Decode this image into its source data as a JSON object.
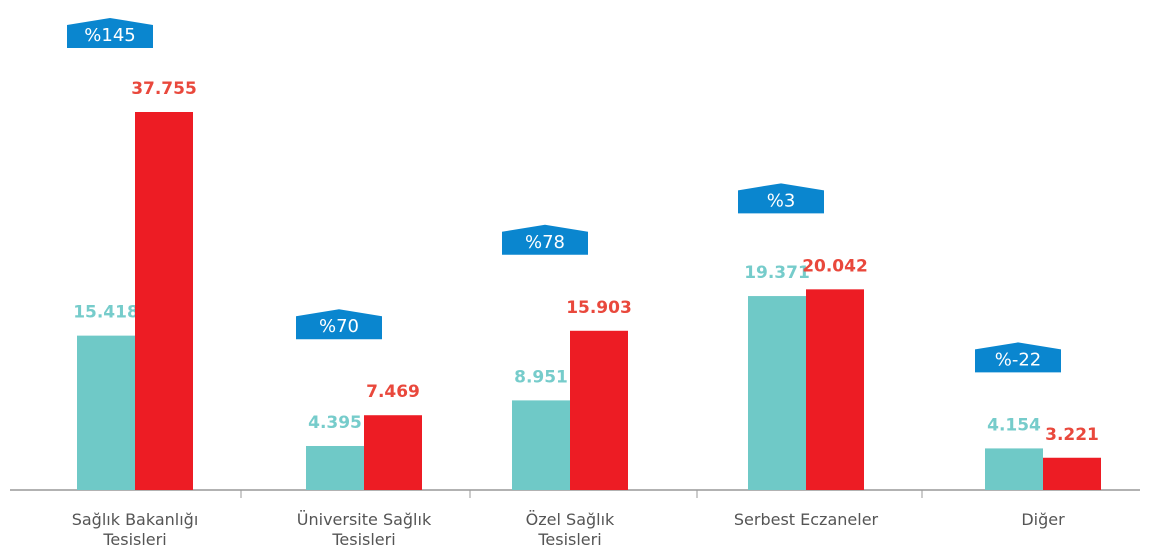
{
  "chart_data": {
    "type": "bar",
    "categories": [
      "Sağlık Bakanlığı\nTesisleri",
      "Üniversite Sağlık\nTesisleri",
      "Özel Sağlık\nTesisleri",
      "Serbest Eczaneler",
      "Diğer"
    ],
    "series": [
      {
        "color": "#6fc9c7",
        "label_color": "#76cccb",
        "values": [
          15418,
          4395,
          8951,
          19371,
          4154
        ],
        "value_labels": [
          "15.418",
          "4.395",
          "8.951",
          "19.371",
          "4.154"
        ]
      },
      {
        "color": "#ed1c24",
        "label_color": "#e9483c",
        "values": [
          37755,
          7469,
          15903,
          20042,
          3221
        ],
        "value_labels": [
          "37.755",
          "7.469",
          "15.903",
          "20.042",
          "3.221"
        ]
      }
    ],
    "annotations": [
      "%145",
      "%70",
      "%78",
      "%3",
      "%-22"
    ],
    "annotation_color": "#0a86cf"
  }
}
